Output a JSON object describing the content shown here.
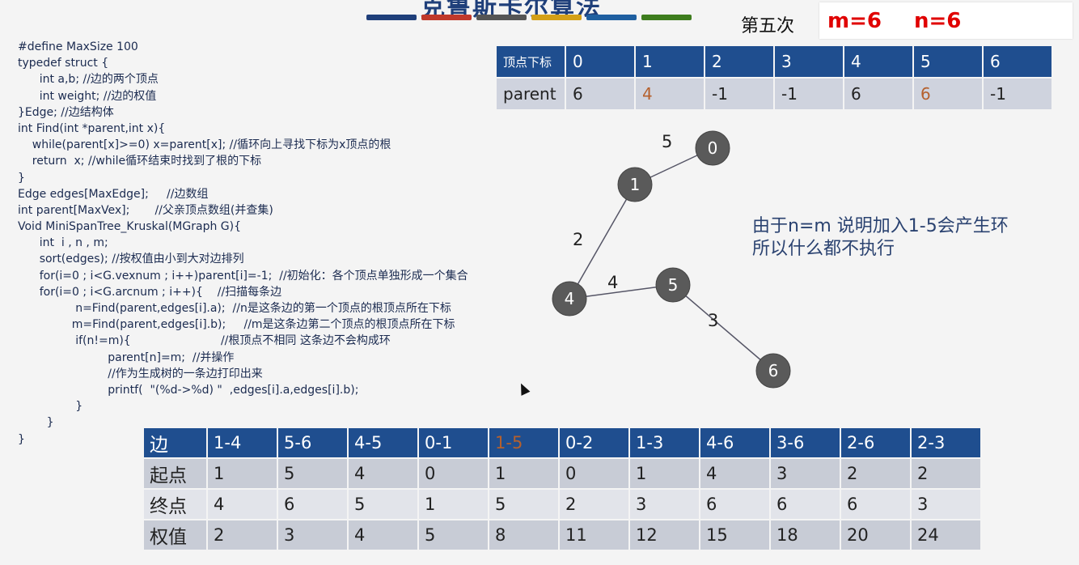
{
  "header": {
    "title": "克鲁斯卡尔算法",
    "bar_colors": [
      "#1f3f7a",
      "#c0392b",
      "#555555",
      "#d4a017",
      "#1f5fa0",
      "#3e7d1e"
    ],
    "round_label": "第五次",
    "m_label": "m=6",
    "n_label": "n=6"
  },
  "code_lines": [
    "#define MaxSize 100",
    "typedef struct {",
    "      int a,b; //边的两个顶点",
    "      int weight; //边的权值",
    "}Edge; //边结构体",
    "int Find(int *parent,int x){",
    "    while(parent[x]>=0) x=parent[x]; //循环向上寻找下标为x顶点的根",
    "    return  x; //while循环结束时找到了根的下标",
    "}",
    "Edge edges[MaxEdge];     //边数组",
    "int parent[MaxVex];       //父亲顶点数组(并查集)",
    "Void MiniSpanTree_Kruskal(MGraph G){",
    "      int  i , n , m;",
    "      sort(edges); //按权值由小到大对边排列",
    "      for(i=0 ; i<G.vexnum ; i++)parent[i]=-1;  //初始化：各个顶点单独形成一个集合",
    "      for(i=0 ; i<G.arcnum ; i++){    //扫描每条边",
    "                n=Find(parent,edges[i].a);  //n是这条边的第一个顶点的根顶点所在下标",
    "               m=Find(parent,edges[i].b);     //m是这条边第二个顶点的根顶点所在下标",
    "                if(n!=m){                         //根顶点不相同 这条边不会构成环",
    "                         parent[n]=m;  //并操作",
    "                         //作为生成树的一条边打印出来",
    "                         printf(  \"(%d->%d) \"  ,edges[i].a,edges[i].b);",
    "                }",
    "        }",
    "}"
  ],
  "parent_table": {
    "header_label": "顶点下标",
    "indices": [
      "0",
      "1",
      "2",
      "3",
      "4",
      "5",
      "6"
    ],
    "row_label": "parent",
    "values": [
      "6",
      "4",
      "-1",
      "-1",
      "6",
      "6",
      "-1"
    ],
    "highlight_color": "#b5602d"
  },
  "graph": {
    "nodes": [
      "0",
      "1",
      "4",
      "5",
      "6"
    ],
    "edge_weights": {
      "e0_1": "5",
      "e1_4": "2",
      "e4_5": "4",
      "e5_6": "3"
    },
    "node_color": "#5a5a5a"
  },
  "note": {
    "line1": "由于n=m 说明加入1-5会产生环",
    "line2": "所以什么都不执行"
  },
  "edge_table": {
    "labels": {
      "edge": "边",
      "start": "起点",
      "end": "终点",
      "weight": "权值"
    },
    "edges": [
      "1-4",
      "5-6",
      "4-5",
      "0-1",
      "1-5",
      "0-2",
      "1-3",
      "4-6",
      "3-6",
      "2-6",
      "2-3"
    ],
    "starts": [
      "1",
      "5",
      "4",
      "0",
      "1",
      "0",
      "1",
      "4",
      "3",
      "2",
      "2"
    ],
    "ends": [
      "4",
      "6",
      "5",
      "1",
      "5",
      "2",
      "3",
      "6",
      "6",
      "6",
      "3"
    ],
    "weights": [
      "2",
      "3",
      "4",
      "5",
      "8",
      "11",
      "12",
      "15",
      "18",
      "20",
      "24"
    ],
    "current_edge": "1-5"
  }
}
